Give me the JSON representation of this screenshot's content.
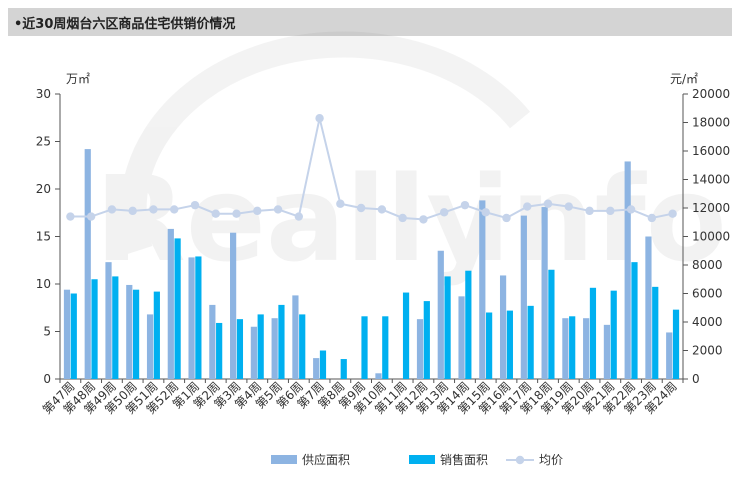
{
  "title": "•近30周烟台六区商品住宅供销价情况",
  "colors": {
    "supply": "#8db4e2",
    "sales": "#00b0f0",
    "price": "#c5d3ea",
    "axis": "#555555",
    "title_bg": "#d4d4d4"
  },
  "chart_data": {
    "type": "bar",
    "title": "",
    "xlabel": "",
    "ylabel": "万㎡",
    "y2label": "元/㎡",
    "ylim": [
      0,
      30
    ],
    "y2lim": [
      0,
      20000
    ],
    "yticks": [
      0,
      5,
      10,
      15,
      20,
      25,
      30
    ],
    "y2ticks": [
      0,
      2000,
      4000,
      6000,
      8000,
      10000,
      12000,
      14000,
      16000,
      18000,
      20000
    ],
    "grid": false,
    "legend_position": "bottom",
    "categories": [
      "第47周",
      "第48周",
      "第49周",
      "第50周",
      "第51周",
      "第52周",
      "第1周",
      "第2周",
      "第3周",
      "第4周",
      "第5周",
      "第6周",
      "第7周",
      "第8周",
      "第9周",
      "第10周",
      "第11周",
      "第12周",
      "第13周",
      "第14周",
      "第15周",
      "第16周",
      "第17周",
      "第18周",
      "第19周",
      "第20周",
      "第21周",
      "第22周",
      "第23周",
      "第24周"
    ],
    "series": [
      {
        "name": "供应面积",
        "type": "bar",
        "axis": "left",
        "values": [
          9.4,
          24.2,
          12.3,
          9.9,
          6.8,
          15.8,
          12.8,
          7.8,
          15.4,
          5.5,
          6.4,
          8.8,
          2.2,
          0,
          0,
          0.6,
          0,
          6.3,
          13.5,
          8.7,
          18.8,
          10.9,
          17.2,
          18.1,
          6.4,
          6.4,
          5.7,
          22.9,
          15.0,
          4.9
        ]
      },
      {
        "name": "销售面积",
        "type": "bar",
        "axis": "left",
        "values": [
          9.0,
          10.5,
          10.8,
          9.4,
          9.2,
          14.8,
          12.9,
          5.9,
          6.3,
          6.8,
          7.8,
          6.8,
          3.0,
          2.1,
          6.6,
          6.6,
          9.1,
          8.2,
          10.8,
          11.4,
          7.0,
          7.2,
          7.7,
          11.5,
          6.6,
          9.6,
          9.3,
          12.3,
          9.7,
          7.3
        ]
      },
      {
        "name": "均价",
        "type": "line",
        "axis": "right",
        "values": [
          11400,
          11400,
          11900,
          11800,
          11900,
          11900,
          12200,
          11600,
          11600,
          11800,
          11900,
          11400,
          18300,
          12300,
          12000,
          11900,
          11300,
          11200,
          11700,
          12200,
          11700,
          11300,
          12100,
          12300,
          12100,
          11800,
          11800,
          11900,
          11300,
          11600
        ]
      }
    ]
  }
}
